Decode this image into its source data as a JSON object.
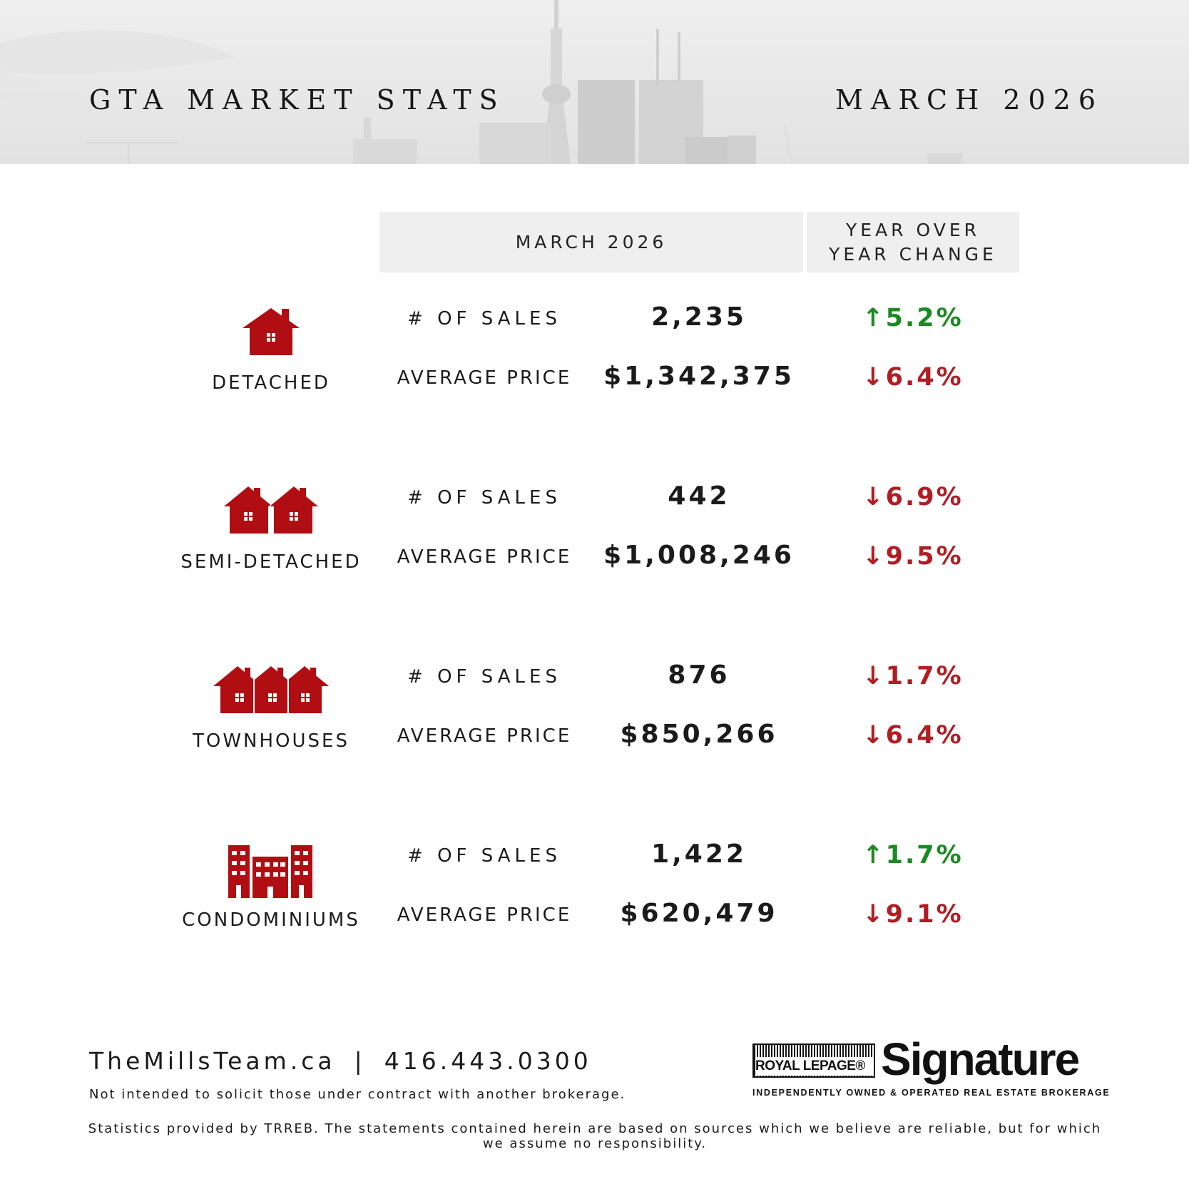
{
  "header": {
    "title": "GTA MARKET STATS",
    "period": "MARCH 2026"
  },
  "table_header": {
    "month": "MARCH 2026",
    "yoy_line1": "YEAR OVER",
    "yoy_line2": "YEAR CHANGE"
  },
  "colors": {
    "icon_red": "#b00e12",
    "up_green": "#1c8a22",
    "down_red": "#b01e24"
  },
  "rows": [
    {
      "type": "DETACHED",
      "icon": "house-icon",
      "sales_label": "# OF SALES",
      "sales": "2,235",
      "sales_change": "5.2%",
      "sales_dir": "up",
      "price_label": "AVERAGE PRICE",
      "price": "$1,342,375",
      "price_change": "6.4%",
      "price_dir": "down"
    },
    {
      "type": "SEMI-DETACHED",
      "icon": "semi-detached-houses-icon",
      "sales_label": "# OF SALES",
      "sales": "442",
      "sales_change": "6.9%",
      "sales_dir": "down",
      "price_label": "AVERAGE PRICE",
      "price": "$1,008,246",
      "price_change": "9.5%",
      "price_dir": "down"
    },
    {
      "type": "TOWNHOUSES",
      "icon": "townhouses-icon",
      "sales_label": "# OF SALES",
      "sales": "876",
      "sales_change": "1.7%",
      "sales_dir": "down",
      "price_label": "AVERAGE PRICE",
      "price": "$850,266",
      "price_change": "6.4%",
      "price_dir": "down"
    },
    {
      "type": "CONDOMINIUMS",
      "icon": "condo-buildings-icon",
      "sales_label": "# OF SALES",
      "sales": "1,422",
      "sales_change": "1.7%",
      "sales_dir": "up",
      "price_label": "AVERAGE PRICE",
      "price": "$620,479",
      "price_change": "9.1%",
      "price_dir": "down"
    }
  ],
  "footer": {
    "website": "TheMillsTeam.ca",
    "separator": "|",
    "phone": "416.443.0300",
    "note": "Not intended to solicit those under contract with another brokerage.",
    "disclaimer": "Statistics provided by TRREB. The statements contained herein are based on sources which we believe are reliable, but for which we assume no responsibility.",
    "brand_box": "ROYAL LEPAGE®",
    "brand_word": "Signature",
    "brand_tagline": "INDEPENDENTLY OWNED & OPERATED REAL ESTATE BROKERAGE"
  }
}
